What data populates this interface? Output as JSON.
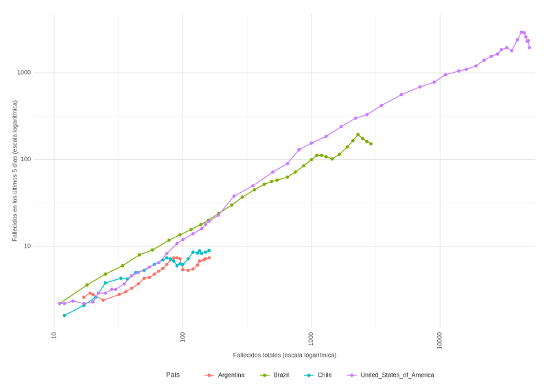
{
  "chart_data": {
    "type": "line",
    "x_label": "Fallecidos totales (escala logarítmica)",
    "y_label": "Fallecidos en los últimos 5 días (escala logarítmica)",
    "legend_title": "País",
    "legend_position": "bottom",
    "log_x": true,
    "log_y": true,
    "grid": true,
    "xlim": [
      7,
      55000
    ],
    "ylim": [
      1.15,
      4800
    ],
    "xticks": [
      10,
      100,
      1000,
      10000
    ],
    "yticks": [
      10,
      100,
      1000
    ],
    "series": [
      {
        "name": "Argentina",
        "color": "#F8766D",
        "x": [
          17,
          19,
          20,
          24,
          32,
          36,
          40,
          45,
          50,
          55,
          60,
          65,
          70,
          75,
          80,
          85,
          90,
          95,
          100,
          110,
          120,
          130,
          135,
          145,
          150,
          160
        ],
        "values": [
          2.6,
          2.9,
          2.8,
          2.4,
          2.8,
          3.0,
          3.3,
          3.7,
          4.3,
          4.4,
          4.8,
          5.2,
          5.6,
          6.2,
          7.0,
          7.4,
          7.4,
          7.2,
          5.4,
          5.3,
          5.5,
          6.1,
          6.8,
          7.0,
          7.2,
          7.4
        ]
      },
      {
        "name": "Brazil",
        "color": "#7CAE00",
        "x": [
          11,
          18,
          25,
          34,
          46,
          58,
          78,
          95,
          116,
          138,
          158,
          190,
          240,
          290,
          360,
          430,
          490,
          540,
          650,
          750,
          870,
          1000,
          1100,
          1200,
          1300,
          1450,
          1650,
          1900,
          2100,
          2300,
          2500,
          2700,
          2900
        ],
        "values": [
          2.2,
          3.6,
          4.8,
          6,
          8,
          9.1,
          11.8,
          13.6,
          15.7,
          17.9,
          20,
          24,
          30,
          37,
          45,
          52,
          56,
          58,
          63,
          72,
          85,
          100,
          112,
          112,
          108,
          102,
          115,
          140,
          165,
          195,
          175,
          162,
          152
        ]
      },
      {
        "name": "Chile",
        "color": "#00BFC4",
        "x": [
          12,
          17,
          21,
          25,
          33,
          37,
          43,
          50,
          60,
          70,
          75,
          80,
          85,
          90,
          95,
          100,
          110,
          120,
          130,
          135,
          140,
          150,
          160
        ],
        "values": [
          1.6,
          2.1,
          2.6,
          3.8,
          4.3,
          4.2,
          5.0,
          5.3,
          6.2,
          7.0,
          7.4,
          7.2,
          6.8,
          6.0,
          6.3,
          6.2,
          7.2,
          8.6,
          8.4,
          8.9,
          8.3,
          8.6,
          9.0
        ]
      },
      {
        "name": "United_States_of_America",
        "color": "#C77CFF",
        "x": [
          11,
          12,
          14,
          17,
          20,
          22,
          25,
          28,
          30,
          35,
          40,
          45,
          55,
          65,
          75,
          90,
          100,
          120,
          140,
          150,
          160,
          190,
          250,
          350,
          500,
          650,
          800,
          1000,
          1300,
          1700,
          2200,
          2700,
          3500,
          5000,
          7000,
          9000,
          11000,
          14000,
          16000,
          19000,
          22000,
          25000,
          28000,
          30000,
          33000,
          36000,
          40000,
          43000,
          45000,
          46500,
          47500,
          48500,
          49500
        ],
        "values": [
          2.2,
          2.2,
          2.35,
          2.2,
          2.3,
          2.9,
          2.9,
          3.2,
          3.2,
          3.7,
          4.6,
          5,
          5.8,
          6.5,
          8.3,
          10.8,
          12,
          14,
          16,
          18,
          19.5,
          23,
          38,
          50,
          72,
          90,
          130,
          155,
          185,
          240,
          300,
          330,
          420,
          560,
          690,
          780,
          950,
          1050,
          1100,
          1200,
          1400,
          1550,
          1650,
          1850,
          1950,
          1800,
          2400,
          2950,
          2900,
          2600,
          2300,
          2350,
          1950
        ]
      }
    ]
  }
}
